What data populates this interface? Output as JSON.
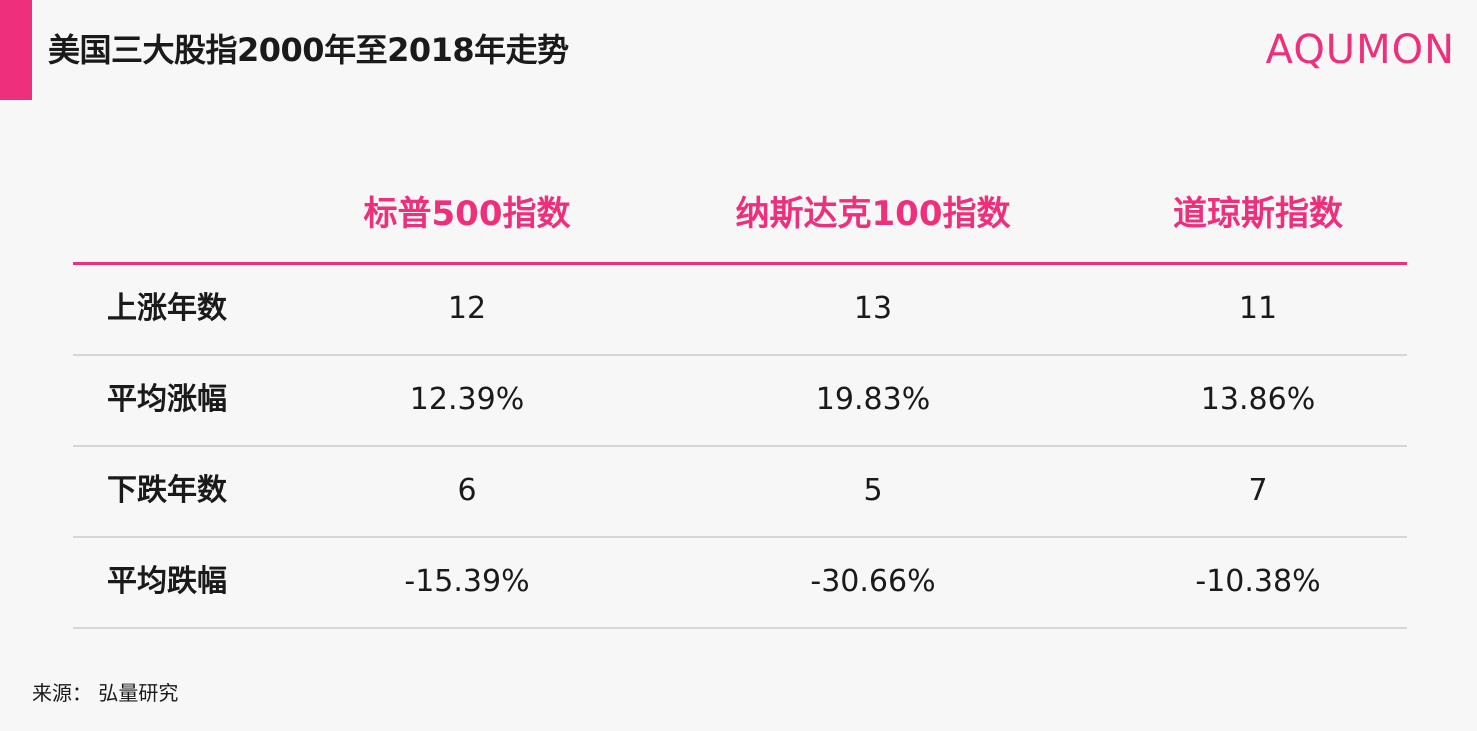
{
  "header": {
    "title": "美国三大股指2000年至2018年走势",
    "logo_text": "AQUMON",
    "accent_color": "#ee2f7c"
  },
  "chart_data": {
    "type": "table",
    "title": "美国三大股指2000年至2018年走势",
    "columns": [
      "标普500指数",
      "纳斯达克100指数",
      "道琼斯指数"
    ],
    "rows": [
      {
        "label": "上涨年数",
        "values": [
          "12",
          "13",
          "11"
        ]
      },
      {
        "label": "平均涨幅",
        "values": [
          "12.39%",
          "19.83%",
          "13.86%"
        ]
      },
      {
        "label": "下跌年数",
        "values": [
          "6",
          "5",
          "7"
        ]
      },
      {
        "label": "平均跌幅",
        "values": [
          "-15.39%",
          "-30.66%",
          "-10.38%"
        ]
      }
    ]
  },
  "footer": {
    "source": "来源： 弘量研究"
  }
}
